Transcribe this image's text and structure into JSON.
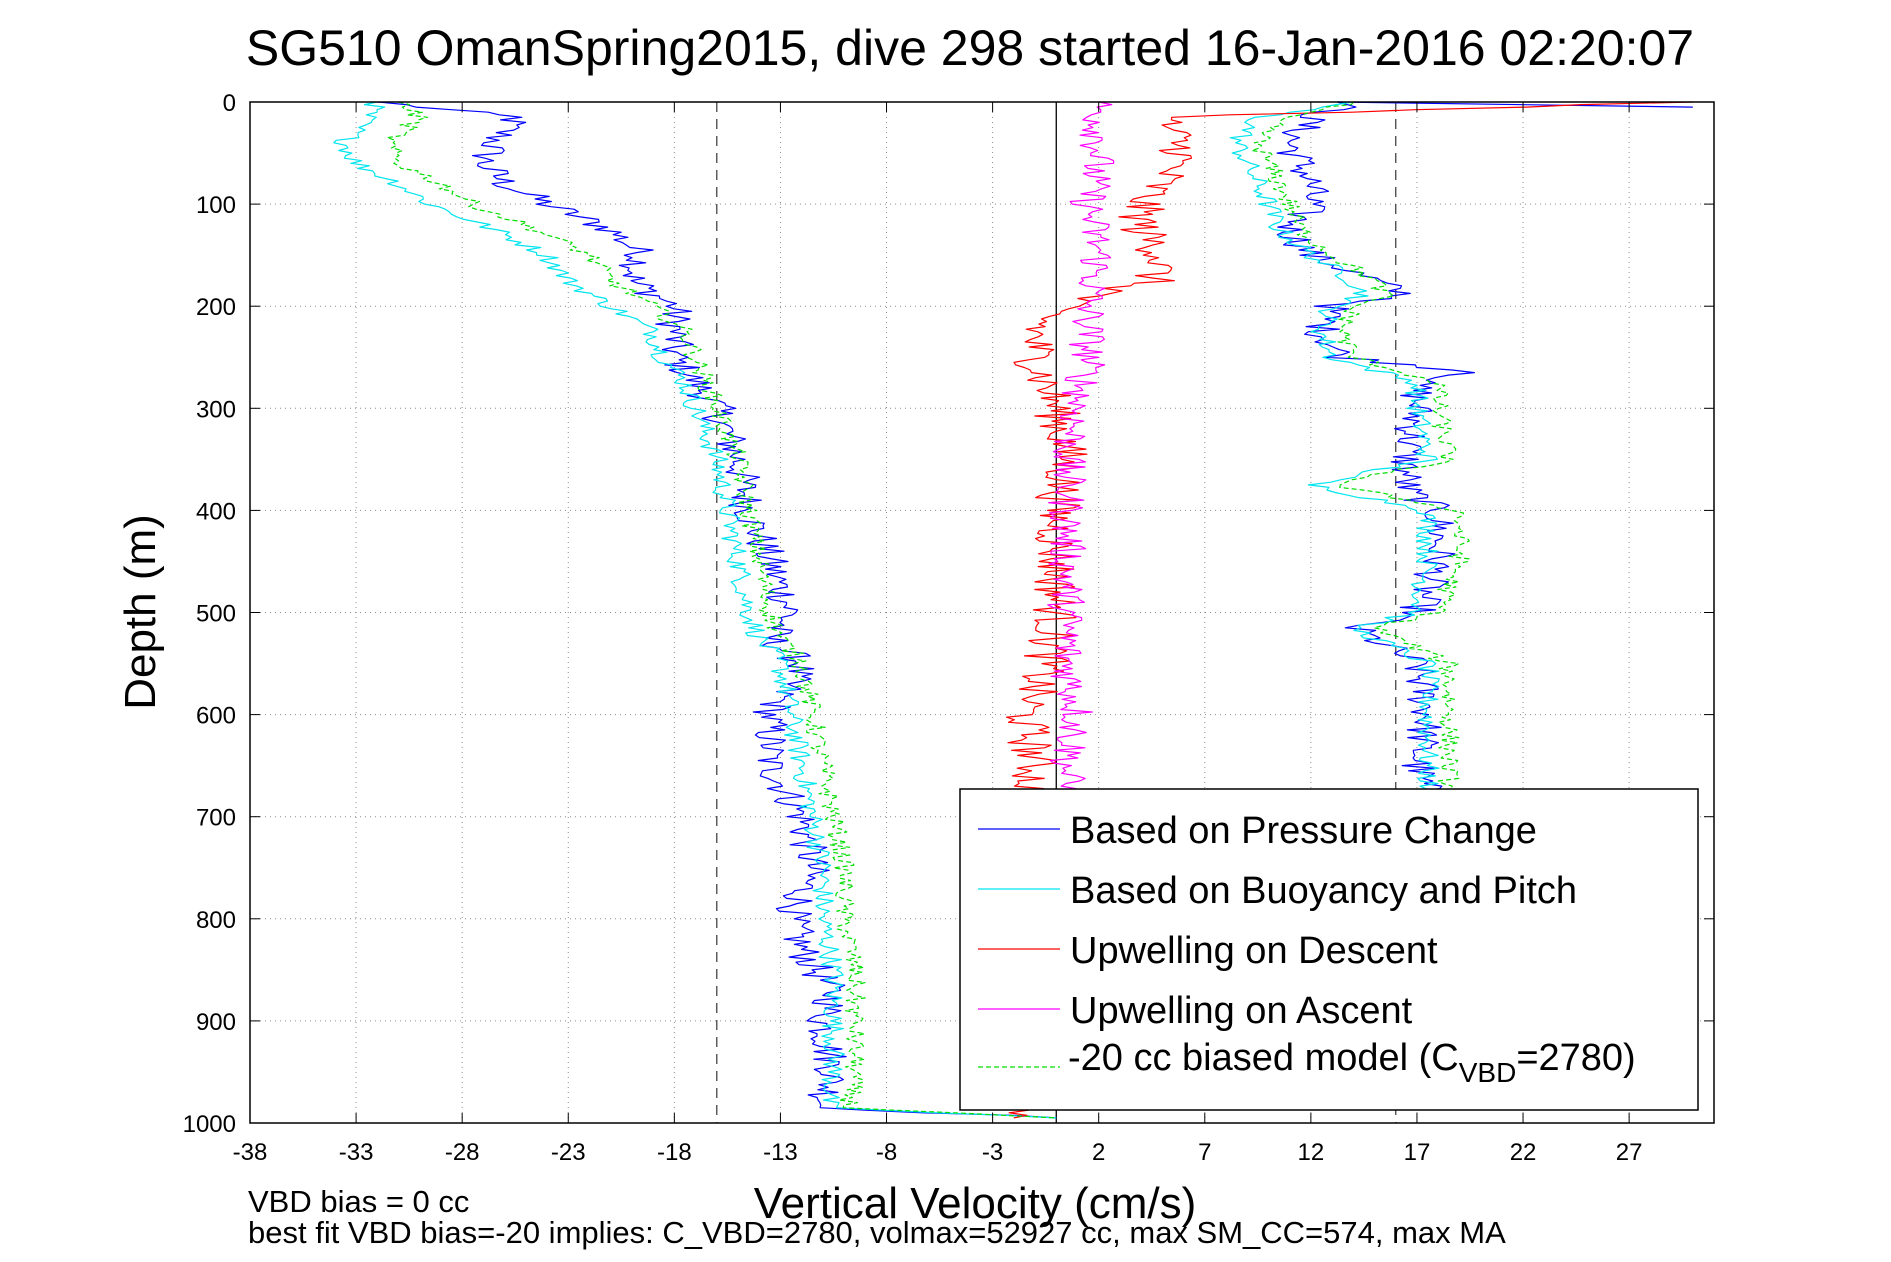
{
  "chart_data": {
    "type": "line",
    "title": "SG510 OmanSpring2015, dive 298 started 16-Jan-2016 02:20:07",
    "xlabel": "Vertical Velocity (cm/s)",
    "ylabel": "Depth (m)",
    "xlim": [
      -38,
      31
    ],
    "ylim": [
      0,
      1000
    ],
    "y_reversed": true,
    "grid": true,
    "xticks": [
      -38,
      -33,
      -28,
      -23,
      -18,
      -13,
      -8,
      -3,
      2,
      7,
      12,
      17,
      22,
      27
    ],
    "yticks": [
      0,
      100,
      200,
      300,
      400,
      500,
      600,
      700,
      800,
      900,
      1000
    ],
    "legend_position": "bottom-right",
    "reference_lines": [
      {
        "x": 0,
        "style": "solid"
      },
      {
        "x": -16,
        "style": "dashed"
      },
      {
        "x": 16,
        "style": "dashed"
      }
    ],
    "series": [
      {
        "name": "Based on Pressure Change",
        "color": "#0000ff",
        "width": 1.2,
        "branches": [
          {
            "d": [
              0,
              15,
              40,
              60,
              80,
              100,
              125,
              150,
              175,
              200,
              225,
              250,
              275,
              300,
              350,
              400,
              450,
              500,
              525,
              550,
              600,
              650,
              700,
              750,
              800,
              830,
              875,
              900,
              950,
              985,
              995
            ],
            "v": [
              -32,
              -25.5,
              -26.5,
              -27,
              -26,
              -24,
              -21,
              -19.5,
              -20,
              -18,
              -18,
              -18,
              -17,
              -16,
              -15,
              -14.5,
              -13.5,
              -12.5,
              -13.5,
              -12,
              -13.5,
              -13.5,
              -12,
              -11.5,
              -12.5,
              -12,
              -10.5,
              -11,
              -10.5,
              -11,
              0
            ]
          },
          {
            "d": [
              5,
              0,
              15,
              40,
              60,
              80,
              100,
              125,
              150,
              175,
              190,
              200,
              225,
              250,
              265,
              275,
              300,
              350,
              380,
              400,
              450,
              500,
              515,
              550,
              600,
              650,
              680,
              700,
              720
            ],
            "v": [
              30,
              14,
              12,
              11,
              11.5,
              12,
              12,
              11,
              12,
              15,
              16.5,
              13,
              12.5,
              13.5,
              20,
              17,
              17,
              16.5,
              16.5,
              18,
              18,
              17,
              14,
              17,
              17.5,
              17,
              17.5,
              17.5,
              17.5
            ]
          }
        ]
      },
      {
        "name": "Based on Buoyancy and Pitch",
        "color": "#00e5ee",
        "width": 1.2,
        "branches": [
          {
            "d": [
              0,
              15,
              40,
              60,
              80,
              100,
              125,
              150,
              175,
              200,
              225,
              250,
              275,
              300,
              350,
              400,
              450,
              500,
              525,
              550,
              600,
              650,
              700,
              750,
              800,
              850,
              900,
              950,
              985,
              995
            ],
            "v": [
              -32,
              -32.5,
              -33.5,
              -33,
              -31,
              -29.5,
              -26.5,
              -24,
              -23,
              -21,
              -19,
              -18.5,
              -17.5,
              -17,
              -16,
              -15.5,
              -15,
              -14.5,
              -14,
              -13,
              -12.5,
              -12,
              -11.5,
              -11,
              -11,
              -10.5,
              -10.5,
              -10.5,
              -10.8,
              0
            ]
          },
          {
            "d": [
              0,
              15,
              40,
              60,
              80,
              100,
              125,
              150,
              175,
              190,
              200,
              225,
              250,
              275,
              300,
              350,
              375,
              400,
              450,
              500,
              515,
              550,
              600,
              650,
              700,
              720
            ],
            "v": [
              14,
              9.5,
              8.5,
              9,
              9.5,
              10,
              10.5,
              12,
              14,
              14.5,
              13,
              12.5,
              13,
              17,
              17,
              17.5,
              12,
              17.5,
              17.5,
              17,
              14,
              17.5,
              17.5,
              17.5,
              17.5,
              17.5
            ]
          }
        ]
      },
      {
        "name": "Upwelling on Descent",
        "color": "#ff0000",
        "width": 1.2,
        "branches": [
          {
            "d": [
              0,
              15,
              50,
              100,
              125,
              150,
              175,
              200,
              225,
              250,
              275,
              300,
              350,
              400,
              450,
              500,
              550,
              575,
              600,
              650,
              700,
              750,
              800,
              850,
              900,
              950,
              985,
              995
            ],
            "v": [
              30,
              5,
              6,
              4,
              4,
              5,
              4.5,
              0,
              -1,
              -1,
              -0.5,
              0,
              0.5,
              0,
              0,
              0,
              -0.5,
              -1,
              -1.5,
              -1,
              -1.5,
              -1,
              -1,
              -1,
              -1,
              -1,
              -1.5,
              -2
            ]
          }
        ]
      },
      {
        "name": "Upwelling on Ascent",
        "color": "#ff00ff",
        "width": 1.2,
        "branches": [
          {
            "d": [
              0,
              50,
              100,
              150,
              200,
              250,
              300,
              350,
              400,
              450,
              500,
              550,
              600,
              650,
              690
            ],
            "v": [
              2,
              2,
              1.5,
              2,
              1.5,
              1.5,
              1,
              0.5,
              0.5,
              0.5,
              0.5,
              0.5,
              1,
              0.5,
              0.5
            ]
          }
        ]
      },
      {
        "name": "-20 cc biased model (C_VBD=2780)",
        "color": "#00dd00",
        "width": 1.2,
        "dashed": true,
        "branches": [
          {
            "d": [
              0,
              15,
              40,
              60,
              80,
              100,
              125,
              150,
              175,
              200,
              225,
              250,
              275,
              300,
              350,
              400,
              450,
              500,
              525,
              550,
              600,
              650,
              700,
              750,
              800,
              850,
              900,
              950,
              985,
              995
            ],
            "v": [
              -31,
              -30,
              -31.5,
              -31,
              -29,
              -27.5,
              -24.5,
              -22,
              -21,
              -19,
              -17.5,
              -17,
              -16.5,
              -16,
              -15,
              -14.5,
              -14,
              -13.5,
              -13,
              -12,
              -11.5,
              -11,
              -10.5,
              -10,
              -10,
              -9.5,
              -9.5,
              -9.5,
              -9.8,
              0
            ]
          },
          {
            "d": [
              0,
              15,
              40,
              60,
              80,
              100,
              125,
              150,
              175,
              190,
              200,
              225,
              250,
              275,
              300,
              350,
              375,
              400,
              450,
              500,
              515,
              550,
              600,
              650,
              700,
              720
            ],
            "v": [
              14,
              10.5,
              9.5,
              10,
              10.5,
              11,
              11.5,
              13,
              15,
              15.5,
              14,
              13.5,
              14,
              18,
              18,
              18.5,
              13,
              19,
              19,
              18,
              15,
              18.5,
              18.5,
              18.5,
              18.5,
              18.5
            ]
          }
        ]
      }
    ],
    "legend_entries": {
      "pressure": "Based on Pressure Change",
      "buoyancy": "Based on Buoyancy and Pitch",
      "descent": "Upwelling on Descent",
      "ascent": "Upwelling on Ascent",
      "model_prefix": "-20 cc biased model (C",
      "model_sub": "VBD",
      "model_suffix": "=2780)"
    }
  },
  "footer": {
    "line1": "VBD bias = 0 cc",
    "line2": "best fit VBD bias=-20 implies: C_VBD=2780, volmax=52927 cc, max SM_CC=574, max MA"
  }
}
